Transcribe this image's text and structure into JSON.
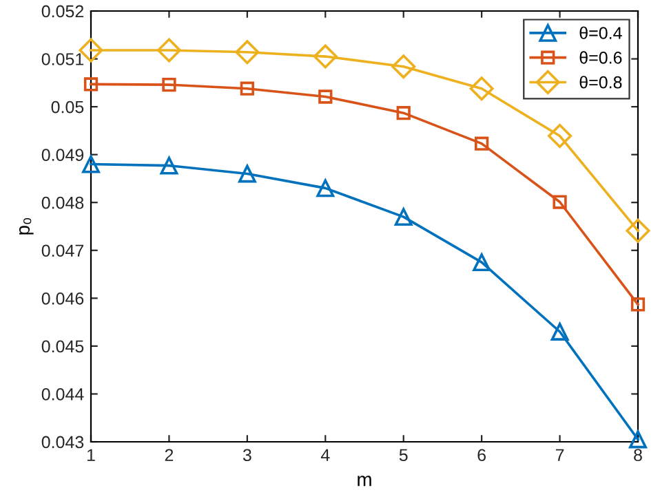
{
  "chart_data": {
    "type": "line",
    "xlabel": "m",
    "ylabel": "p₀",
    "x": [
      1,
      2,
      3,
      4,
      5,
      6,
      7,
      8
    ],
    "series": [
      {
        "name": "θ=0.4",
        "color": "#0072bd",
        "marker": "triangle",
        "values": [
          0.0488,
          0.04877,
          0.0486,
          0.0483,
          0.0477,
          0.04675,
          0.0453,
          0.04305
        ]
      },
      {
        "name": "θ=0.6",
        "color": "#d95319",
        "marker": "square",
        "values": [
          0.05047,
          0.05046,
          0.05038,
          0.05021,
          0.04987,
          0.04923,
          0.04801,
          0.04587
        ]
      },
      {
        "name": "θ=0.8",
        "color": "#edb120",
        "marker": "diamond",
        "values": [
          0.05118,
          0.05118,
          0.05114,
          0.05105,
          0.05084,
          0.05038,
          0.04939,
          0.04741
        ]
      }
    ],
    "xlim": [
      1,
      8
    ],
    "xticks": [
      1,
      2,
      3,
      4,
      5,
      6,
      7,
      8
    ],
    "ylim": [
      0.043,
      0.052
    ],
    "yticks": [
      {
        "value": 0.043,
        "label": "0.043"
      },
      {
        "value": 0.044,
        "label": "0.044"
      },
      {
        "value": 0.045,
        "label": "0.045"
      },
      {
        "value": 0.046,
        "label": "0.046"
      },
      {
        "value": 0.047,
        "label": "0.047"
      },
      {
        "value": 0.048,
        "label": "0.048"
      },
      {
        "value": 0.049,
        "label": "0.049"
      },
      {
        "value": 0.05,
        "label": "0.05"
      },
      {
        "value": 0.051,
        "label": "0.051"
      },
      {
        "value": 0.052,
        "label": "0.052"
      }
    ],
    "grid": false,
    "legend": "top right",
    "line_style": "solid"
  }
}
